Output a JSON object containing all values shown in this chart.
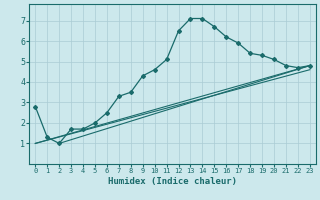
{
  "xlabel": "Humidex (Indice chaleur)",
  "ylabel": "",
  "bg_color": "#cce8ec",
  "grid_color": "#aaccd4",
  "line_color": "#1a6b6b",
  "xlim": [
    -0.5,
    23.5
  ],
  "ylim": [
    0,
    7.8
  ],
  "xticks": [
    0,
    1,
    2,
    3,
    4,
    5,
    6,
    7,
    8,
    9,
    10,
    11,
    12,
    13,
    14,
    15,
    16,
    17,
    18,
    19,
    20,
    21,
    22,
    23
  ],
  "yticks": [
    1,
    2,
    3,
    4,
    5,
    6,
    7
  ],
  "line1_x": [
    0,
    1,
    2,
    3,
    4,
    5,
    6,
    7,
    8,
    9,
    10,
    11,
    12,
    13,
    14,
    15,
    16,
    17,
    18,
    19,
    20,
    21,
    22,
    23
  ],
  "line1_y": [
    2.8,
    1.3,
    1.0,
    1.7,
    1.7,
    2.0,
    2.5,
    3.3,
    3.5,
    4.3,
    4.6,
    5.1,
    6.5,
    7.1,
    7.1,
    6.7,
    6.2,
    5.9,
    5.4,
    5.3,
    5.1,
    4.8,
    4.7,
    4.8
  ],
  "line2_x": [
    0,
    23
  ],
  "line2_y": [
    1.0,
    4.8
  ],
  "line3_x": [
    2,
    23
  ],
  "line3_y": [
    1.0,
    4.8
  ],
  "line4_x": [
    0,
    23
  ],
  "line4_y": [
    1.0,
    4.6
  ]
}
